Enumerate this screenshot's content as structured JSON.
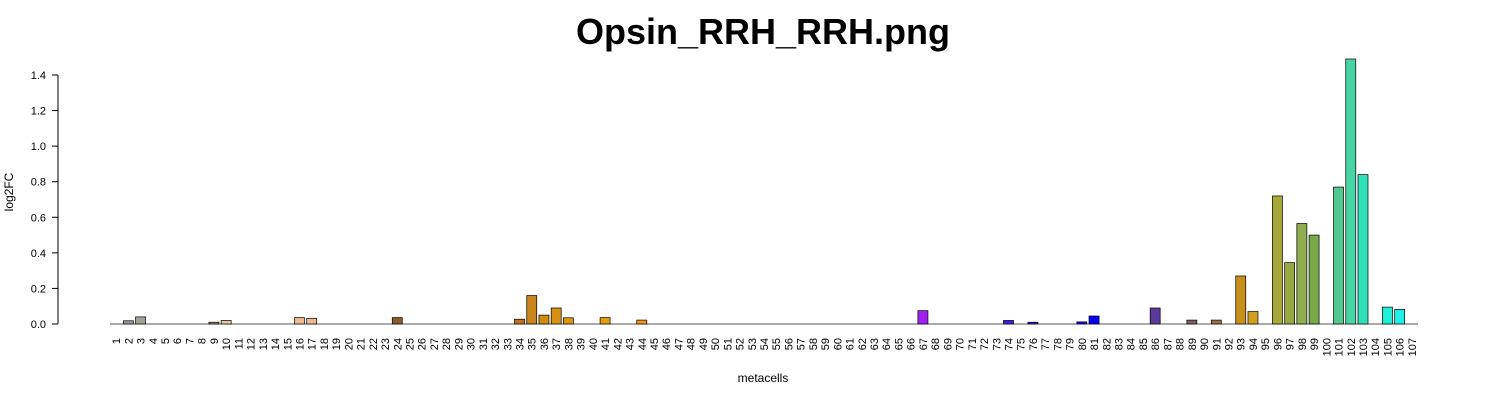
{
  "chart_data": {
    "type": "bar",
    "title": "Opsin_RRH_RRH.png",
    "xlabel": "metacells",
    "ylabel": "log2FC",
    "ylim": [
      0,
      1.4
    ],
    "yticks": [
      "0.0",
      "0.2",
      "0.4",
      "0.6",
      "0.8",
      "1.0",
      "1.2",
      "1.4"
    ],
    "grid": false,
    "categories": [
      "1",
      "2",
      "3",
      "4",
      "5",
      "6",
      "7",
      "8",
      "9",
      "10",
      "11",
      "12",
      "13",
      "14",
      "15",
      "16",
      "17",
      "18",
      "19",
      "20",
      "21",
      "22",
      "23",
      "24",
      "25",
      "26",
      "27",
      "28",
      "29",
      "30",
      "31",
      "32",
      "33",
      "34",
      "35",
      "36",
      "37",
      "38",
      "39",
      "40",
      "41",
      "42",
      "43",
      "44",
      "45",
      "46",
      "47",
      "48",
      "49",
      "50",
      "51",
      "52",
      "53",
      "54",
      "55",
      "56",
      "57",
      "58",
      "59",
      "60",
      "61",
      "62",
      "63",
      "64",
      "65",
      "66",
      "67",
      "68",
      "69",
      "70",
      "71",
      "72",
      "73",
      "74",
      "75",
      "76",
      "77",
      "78",
      "79",
      "80",
      "81",
      "82",
      "83",
      "84",
      "85",
      "86",
      "87",
      "88",
      "89",
      "90",
      "91",
      "92",
      "93",
      "94",
      "95",
      "96",
      "97",
      "98",
      "99",
      "100",
      "101",
      "102",
      "103",
      "104",
      "105",
      "106",
      "107"
    ],
    "values": [
      0,
      0.018,
      0.04,
      0,
      0,
      0,
      0,
      0,
      0.01,
      0.02,
      0,
      0,
      0,
      0,
      0,
      0.036,
      0.032,
      0,
      0,
      0,
      0,
      0,
      0,
      0.036,
      0,
      0,
      0,
      0,
      0,
      0,
      0,
      0,
      0,
      0.027,
      0.16,
      0.05,
      0.09,
      0.035,
      0,
      0,
      0.036,
      0,
      0,
      0.022,
      0,
      0,
      0,
      0,
      0,
      0,
      0,
      0,
      0,
      0,
      0,
      0,
      0,
      0,
      0,
      0,
      0,
      0,
      0,
      0,
      0,
      0,
      0.075,
      0,
      0,
      0,
      0,
      0,
      0,
      0.02,
      0,
      0.01,
      0,
      0,
      0,
      0.012,
      0.045,
      0,
      0,
      0,
      0,
      0.09,
      0,
      0,
      0.022,
      0,
      0.022,
      0,
      0.27,
      0.07,
      0,
      0.72,
      0.345,
      0.565,
      0.5,
      0,
      0.77,
      1.49,
      0.84,
      0,
      0.095,
      0.082,
      0
    ],
    "colors": [
      "#9a9a9a",
      "#9a9a9a",
      "#a3a39a",
      "#9a9a9a",
      "#9a9a9a",
      "#9a9a9a",
      "#9a9a9a",
      "#9a9a9a",
      "#b08a66",
      "#e6c79a",
      "#e6c79a",
      "#d9b48c",
      "#d9b48c",
      "#d9b48c",
      "#e8a878",
      "#f0b890",
      "#f0b890",
      "#e0a070",
      "#e0a070",
      "#d09060",
      "#c88850",
      "#c08040",
      "#b07040",
      "#8b5a2b",
      "#a06a30",
      "#a86c28",
      "#b07020",
      "#b87820",
      "#c07c18",
      "#c88010",
      "#c88010",
      "#cc8412",
      "#d08814",
      "#c07020",
      "#c8841a",
      "#d08c10",
      "#d89010",
      "#e0940c",
      "#e09814",
      "#e89c10",
      "#e89c10",
      "#f0a010",
      "#e89418",
      "#f09818",
      "#e88c14",
      "#e88c14",
      "#e88c14",
      "#e88c14",
      "#e88c14",
      "#e88c14",
      "#e88c14",
      "#e88c14",
      "#e88c14",
      "#e88c14",
      "#e88c14",
      "#e88c14",
      "#e88c14",
      "#e88c14",
      "#e88c14",
      "#e88c14",
      "#e88c14",
      "#e88c14",
      "#e88c14",
      "#e88c14",
      "#e88c14",
      "#e88c14",
      "#a020f0",
      "#8a2be2",
      "#8a2be2",
      "#7a30e0",
      "#6a30e0",
      "#5a30e0",
      "#4a30e0",
      "#3a20e8",
      "#3020e0",
      "#2a20d8",
      "#2020e0",
      "#2020e0",
      "#1a1ae8",
      "#1010e8",
      "#0000f0",
      "#3030c0",
      "#4040b0",
      "#5040a8",
      "#5a40a0",
      "#5a3a98",
      "#6a4a70",
      "#7a5070",
      "#806060",
      "#907050",
      "#a07040",
      "#b08030",
      "#c8901a",
      "#d0a020",
      "#b0b040",
      "#a8a838",
      "#98a840",
      "#90b050",
      "#78a848",
      "#60b870",
      "#50c890",
      "#48d4a4",
      "#30e0b8",
      "#20e8c8",
      "#20f0d8",
      "#20f0e8",
      "#20f0f0"
    ]
  }
}
